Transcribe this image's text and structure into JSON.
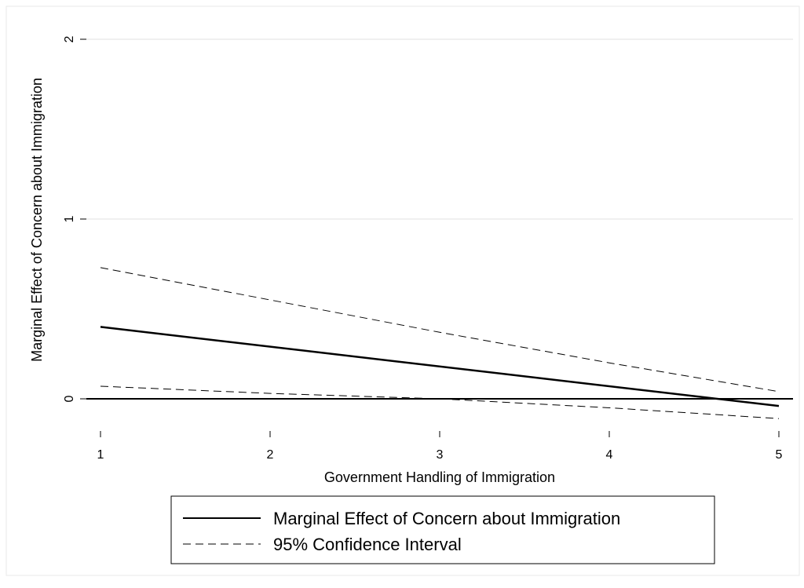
{
  "chart_data": {
    "type": "line",
    "xlabel": "Government Handling of Immigration",
    "ylabel": "Marginal Effect of Concern about Immigration",
    "xlim": [
      1,
      5
    ],
    "ylim": [
      0,
      2
    ],
    "x_ticks": [
      "1",
      "2",
      "3",
      "4",
      "5"
    ],
    "y_ticks": [
      "0",
      "1",
      "2"
    ],
    "grid": "horizontal",
    "reference_line_y": 0,
    "legend_position": "bottom",
    "series": [
      {
        "name": "Marginal Effect of Concern about Immigration",
        "style": "solid",
        "x": [
          1,
          5
        ],
        "y": [
          0.4,
          -0.04
        ]
      },
      {
        "name": "95% Confidence Interval",
        "style": "dashed",
        "x": [
          1,
          2,
          3,
          4,
          5
        ],
        "y": [
          0.73,
          0.55,
          0.37,
          0.2,
          0.04
        ]
      },
      {
        "name": "95% Confidence Interval",
        "style": "dashed",
        "x": [
          1,
          2,
          3,
          4,
          5
        ],
        "y": [
          0.07,
          0.03,
          0.0,
          -0.05,
          -0.11
        ]
      }
    ],
    "legend": [
      {
        "label": "Marginal Effect of Concern about Immigration",
        "style": "solid"
      },
      {
        "label": "95% Confidence Interval",
        "style": "dashed"
      }
    ]
  }
}
